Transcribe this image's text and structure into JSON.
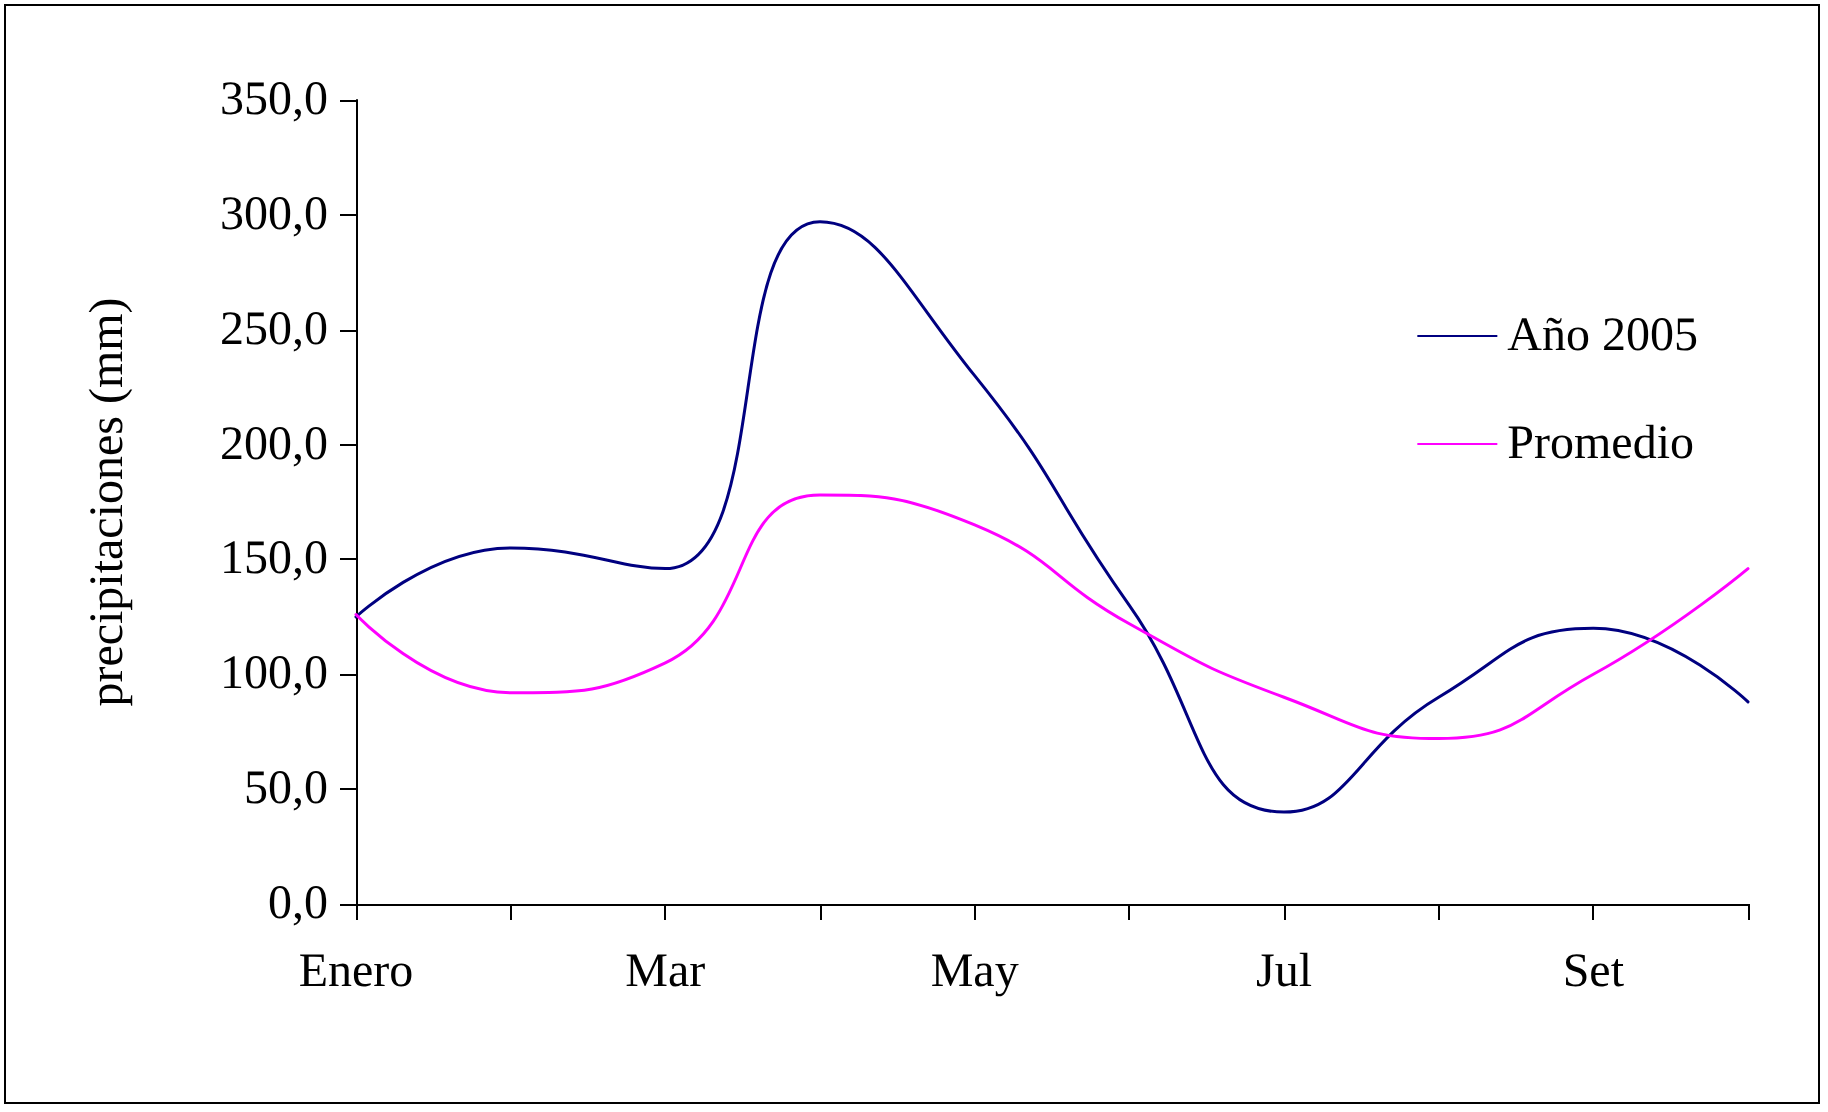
{
  "chart_data": {
    "type": "line",
    "ylabel": "precipitaciones (mm)",
    "categories": [
      "Enero",
      null,
      "Mar",
      null,
      "May",
      null,
      "Jul",
      null,
      "Set",
      null
    ],
    "series": [
      {
        "name": "Año 2005",
        "color": "#000080",
        "values": [
          125,
          155,
          146,
          297,
          230,
          130,
          40,
          90,
          120,
          88
        ]
      },
      {
        "name": "Promedio",
        "color": "#ff00ff",
        "values": [
          126,
          92,
          105,
          178,
          165,
          122,
          90,
          72,
          100,
          146
        ]
      }
    ],
    "ylim": [
      0,
      350
    ],
    "yticks": [
      {
        "value": 0,
        "label": "0,0"
      },
      {
        "value": 50,
        "label": "50,0"
      },
      {
        "value": 100,
        "label": "100,0"
      },
      {
        "value": 150,
        "label": "150,0"
      },
      {
        "value": 200,
        "label": "200,0"
      },
      {
        "value": 250,
        "label": "250,0"
      },
      {
        "value": 300,
        "label": "300,0"
      },
      {
        "value": 350,
        "label": "350,0"
      }
    ],
    "grid": false,
    "legend": "right",
    "marker": "none",
    "line_style": "solid"
  }
}
